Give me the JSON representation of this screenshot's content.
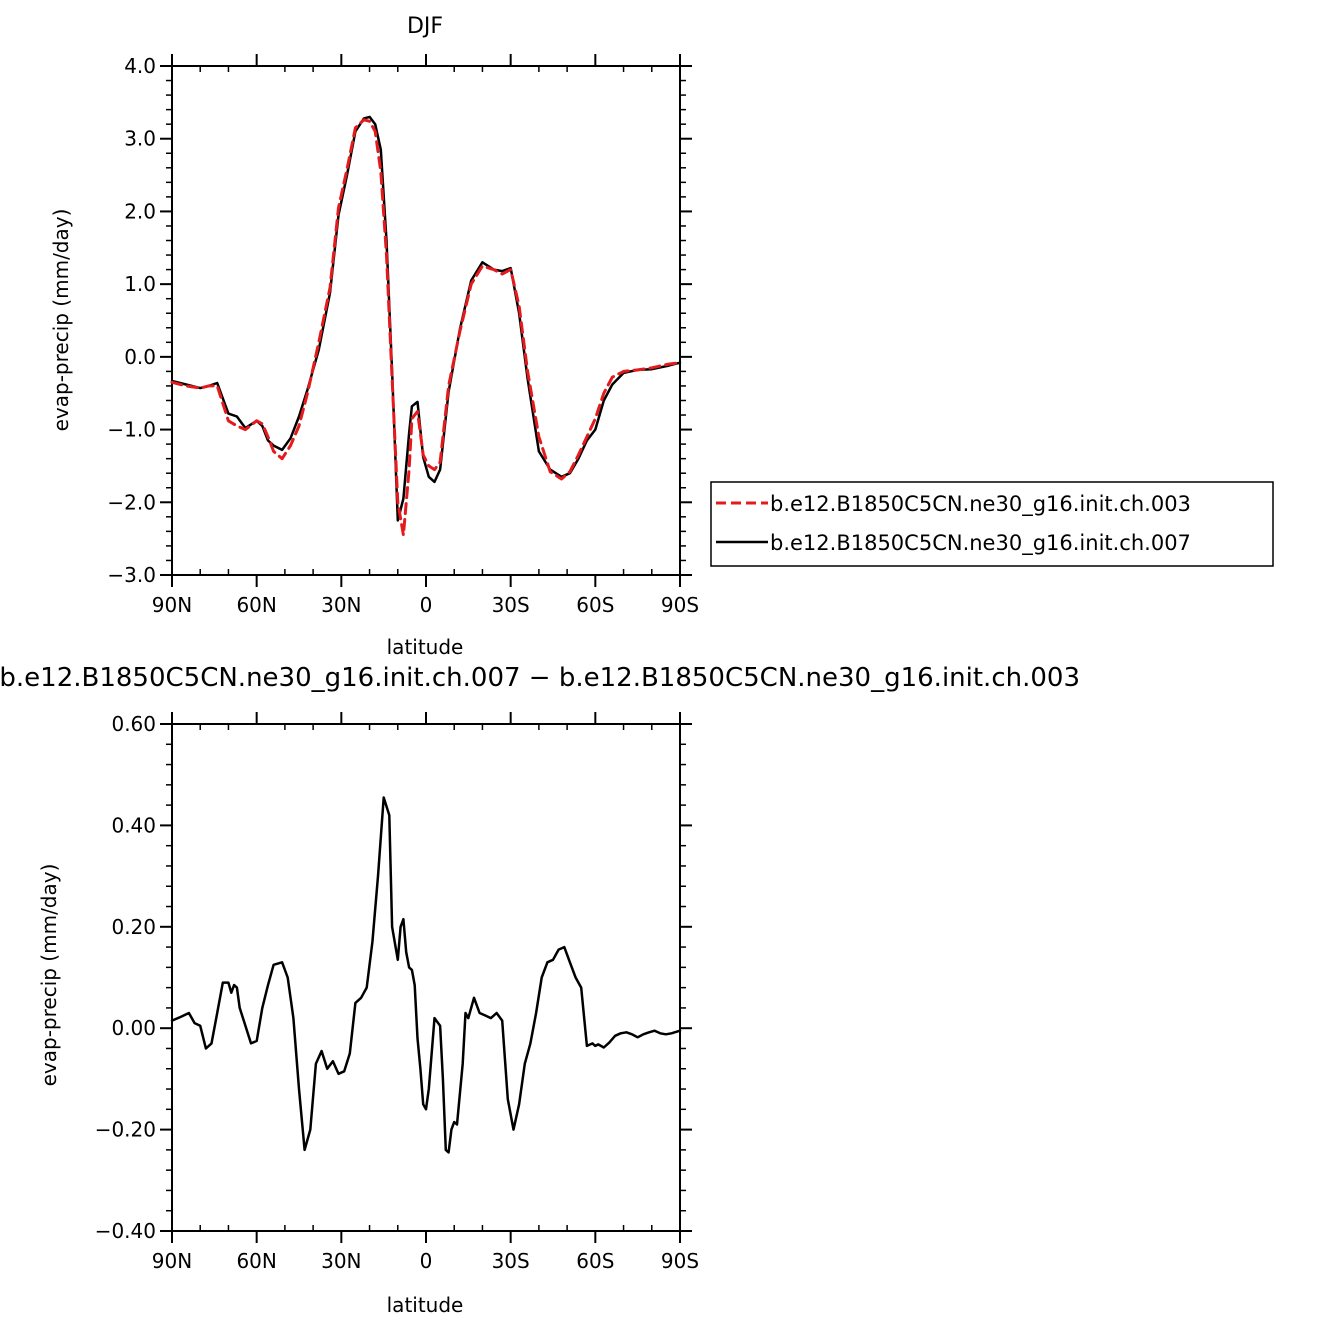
{
  "chart_data": [
    {
      "type": "line",
      "title": "DJF",
      "xlabel": "latitude",
      "ylabel": "evap-precip (mm/day)",
      "xlim": [
        90,
        -90
      ],
      "ylim": [
        -3.0,
        4.0
      ],
      "xticks": [
        {
          "value": 90,
          "label": "90N"
        },
        {
          "value": 60,
          "label": "60N"
        },
        {
          "value": 30,
          "label": "30N"
        },
        {
          "value": 0,
          "label": "0"
        },
        {
          "value": -30,
          "label": "30S"
        },
        {
          "value": -60,
          "label": "60S"
        },
        {
          "value": -90,
          "label": "90S"
        }
      ],
      "yticks": [
        {
          "value": 4.0,
          "label": "4.0"
        },
        {
          "value": 3.0,
          "label": "3.0"
        },
        {
          "value": 2.0,
          "label": "2.0"
        },
        {
          "value": 1.0,
          "label": "1.0"
        },
        {
          "value": 0.0,
          "label": "0.0"
        },
        {
          "value": -1.0,
          "label": "−1.0"
        },
        {
          "value": -2.0,
          "label": "−2.0"
        },
        {
          "value": -3.0,
          "label": "−3.0"
        }
      ],
      "legend_position": "right",
      "series": [
        {
          "name": "b.e12.B1850C5CN.ne30_g16.init.ch.003",
          "color": "#e41a1c",
          "dash": "dashed",
          "x": [
            90,
            85,
            80,
            77,
            74,
            70,
            67,
            64,
            60,
            58,
            56,
            54,
            51,
            48,
            45,
            42,
            38,
            34,
            31,
            28,
            25,
            22,
            20,
            18,
            16,
            14,
            12,
            10,
            8,
            6,
            5,
            3,
            1,
            -1,
            -3,
            -5,
            -8,
            -12,
            -16,
            -20,
            -24,
            -27,
            -30,
            -33,
            -36,
            -40,
            -44,
            -48,
            -51,
            -54,
            -57,
            -60,
            -63,
            -66,
            -70,
            -75,
            -80,
            -86,
            -90
          ],
          "y": [
            -0.35,
            -0.4,
            -0.43,
            -0.4,
            -0.4,
            -0.88,
            -0.95,
            -1.0,
            -0.88,
            -0.92,
            -1.1,
            -1.3,
            -1.4,
            -1.22,
            -0.95,
            -0.5,
            0.2,
            0.95,
            2.05,
            2.58,
            3.15,
            3.26,
            3.24,
            3.1,
            2.55,
            1.4,
            -0.3,
            -2.0,
            -2.45,
            -1.55,
            -0.85,
            -0.75,
            -1.35,
            -1.5,
            -1.55,
            -1.45,
            -0.4,
            0.35,
            1.0,
            1.25,
            1.2,
            1.14,
            1.2,
            0.7,
            -0.2,
            -1.1,
            -1.58,
            -1.68,
            -1.58,
            -1.35,
            -1.1,
            -0.85,
            -0.5,
            -0.28,
            -0.2,
            -0.18,
            -0.15,
            -0.1,
            -0.08
          ]
        },
        {
          "name": "b.e12.B1850C5CN.ne30_g16.init.ch.007",
          "color": "#000000",
          "dash": "solid",
          "x": [
            90,
            85,
            80,
            77,
            74,
            70,
            67,
            64,
            60,
            58,
            56,
            54,
            51,
            48,
            45,
            42,
            38,
            34,
            31,
            28,
            25,
            22,
            20,
            18,
            16,
            14,
            12,
            10,
            8,
            6,
            5,
            3,
            1,
            -1,
            -3,
            -5,
            -8,
            -12,
            -16,
            -20,
            -24,
            -27,
            -30,
            -33,
            -36,
            -40,
            -44,
            -48,
            -51,
            -54,
            -57,
            -60,
            -63,
            -66,
            -70,
            -75,
            -80,
            -86,
            -90
          ],
          "y": [
            -0.33,
            -0.38,
            -0.43,
            -0.4,
            -0.36,
            -0.78,
            -0.82,
            -0.98,
            -0.88,
            -0.95,
            -1.15,
            -1.22,
            -1.28,
            -1.12,
            -0.82,
            -0.45,
            0.1,
            0.88,
            1.95,
            2.5,
            3.1,
            3.28,
            3.3,
            3.2,
            2.85,
            1.6,
            -0.2,
            -2.25,
            -1.95,
            -1.05,
            -0.68,
            -0.62,
            -1.38,
            -1.65,
            -1.72,
            -1.55,
            -0.48,
            0.38,
            1.05,
            1.3,
            1.2,
            1.18,
            1.22,
            0.6,
            -0.3,
            -1.3,
            -1.55,
            -1.65,
            -1.6,
            -1.4,
            -1.15,
            -1.0,
            -0.6,
            -0.38,
            -0.22,
            -0.18,
            -0.17,
            -0.12,
            -0.08
          ]
        }
      ]
    },
    {
      "type": "line",
      "title": "b.e12.B1850C5CN.ne30_g16.init.ch.007 − b.e12.B1850C5CN.ne30_g16.init.ch.003",
      "xlabel": "latitude",
      "ylabel": "evap-precip (mm/day)",
      "xlim": [
        90,
        -90
      ],
      "ylim": [
        -0.4,
        0.6
      ],
      "xticks": [
        {
          "value": 90,
          "label": "90N"
        },
        {
          "value": 60,
          "label": "60N"
        },
        {
          "value": 30,
          "label": "30N"
        },
        {
          "value": 0,
          "label": "0"
        },
        {
          "value": -30,
          "label": "30S"
        },
        {
          "value": -60,
          "label": "60S"
        },
        {
          "value": -90,
          "label": "90S"
        }
      ],
      "yticks": [
        {
          "value": 0.6,
          "label": "0.60"
        },
        {
          "value": 0.4,
          "label": "0.40"
        },
        {
          "value": 0.2,
          "label": "0.20"
        },
        {
          "value": 0.0,
          "label": "0.00"
        },
        {
          "value": -0.2,
          "label": "−0.20"
        },
        {
          "value": -0.4,
          "label": "−0.40"
        }
      ],
      "series": [
        {
          "color": "#000000",
          "dash": "solid",
          "x": [
            90,
            87,
            84,
            82,
            80,
            78,
            76,
            74,
            72,
            70,
            69,
            68,
            67,
            66,
            64,
            62,
            60,
            58,
            56,
            54,
            51,
            49,
            47,
            45,
            43,
            41,
            39,
            37,
            35,
            33,
            31,
            29,
            27,
            25,
            23,
            21,
            19,
            17,
            15,
            13,
            12,
            10,
            9,
            8,
            7,
            6,
            5,
            4,
            3,
            2,
            1,
            0,
            -1,
            -3,
            -5,
            -6,
            -7,
            -8,
            -9,
            -10,
            -11,
            -13,
            -14,
            -15,
            -17,
            -19,
            -21,
            -23,
            -25,
            -27,
            -29,
            -31,
            -33,
            -35,
            -37,
            -39,
            -41,
            -43,
            -45,
            -47,
            -49,
            -51,
            -53,
            -55,
            -57,
            -59,
            -60,
            -61,
            -63,
            -65,
            -67,
            -69,
            -71,
            -73,
            -75,
            -77,
            -79,
            -81,
            -83,
            -85,
            -87,
            -90
          ],
          "y": [
            0.015,
            0.022,
            0.03,
            0.01,
            0.005,
            -0.04,
            -0.03,
            0.03,
            0.09,
            0.09,
            0.07,
            0.085,
            0.08,
            0.04,
            0.005,
            -0.03,
            -0.025,
            0.04,
            0.085,
            0.125,
            0.13,
            0.1,
            0.02,
            -0.12,
            -0.24,
            -0.2,
            -0.07,
            -0.045,
            -0.08,
            -0.065,
            -0.09,
            -0.085,
            -0.05,
            0.05,
            0.06,
            0.08,
            0.17,
            0.3,
            0.455,
            0.42,
            0.2,
            0.135,
            0.2,
            0.215,
            0.15,
            0.12,
            0.115,
            0.085,
            -0.02,
            -0.08,
            -0.15,
            -0.16,
            -0.12,
            0.02,
            0.005,
            -0.1,
            -0.24,
            -0.245,
            -0.2,
            -0.185,
            -0.19,
            -0.07,
            0.03,
            0.02,
            0.06,
            0.03,
            0.025,
            0.02,
            0.03,
            0.015,
            -0.14,
            -0.2,
            -0.15,
            -0.07,
            -0.03,
            0.03,
            0.1,
            0.13,
            0.135,
            0.155,
            0.16,
            0.13,
            0.1,
            0.08,
            -0.035,
            -0.03,
            -0.035,
            -0.032,
            -0.038,
            -0.028,
            -0.015,
            -0.01,
            -0.008,
            -0.012,
            -0.018,
            -0.012,
            -0.008,
            -0.005,
            -0.01,
            -0.012,
            -0.01,
            -0.005
          ]
        }
      ]
    }
  ]
}
